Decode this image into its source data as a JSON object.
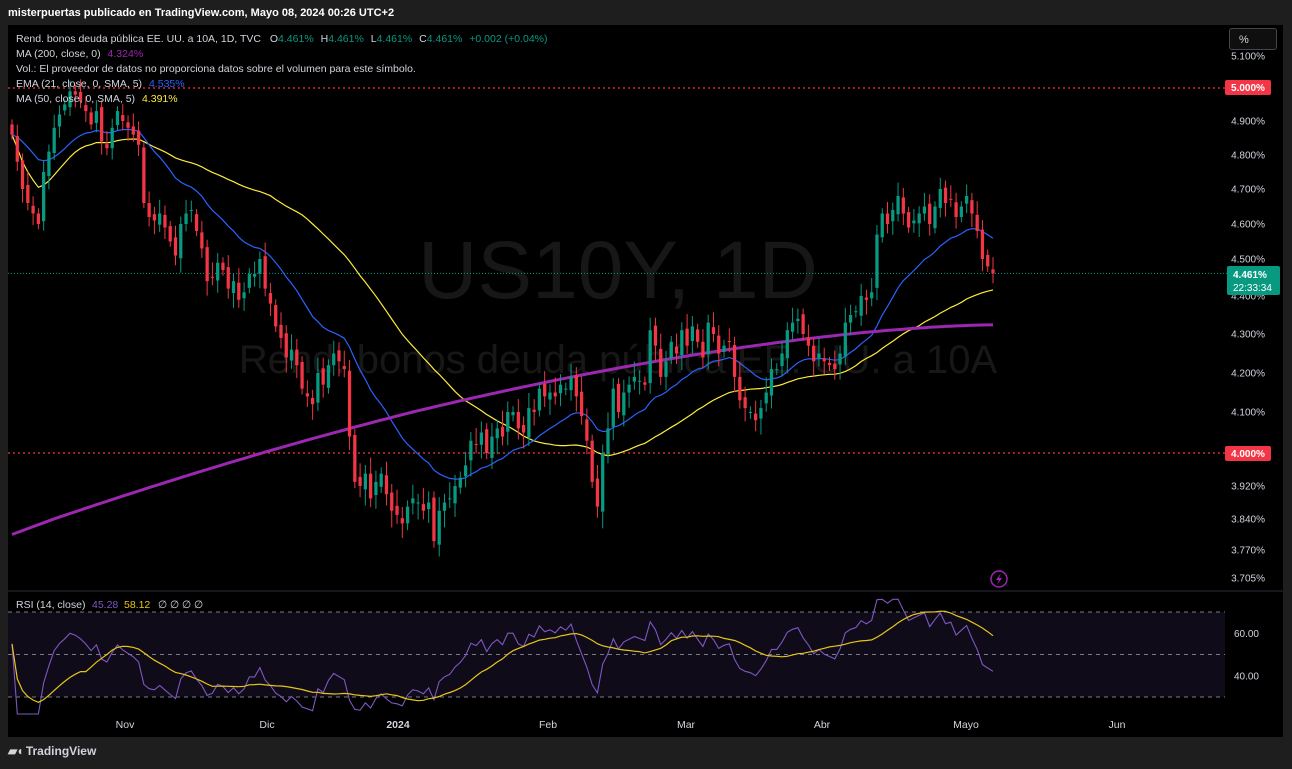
{
  "header": {
    "published_by": "misterpuertas publicado en TradingView.com, Mayo 08, 2024 00:26 UTC+2"
  },
  "legend": {
    "symbol_line": "Rend. bonos deuda pública EE. UU. a 10A, 1D, TVC",
    "ohlc": {
      "O": "4.461%",
      "H": "4.461%",
      "L": "4.461%",
      "C": "4.461%",
      "change": "+0.002 (+0.04%)"
    },
    "ma200": {
      "label": "MA (200, close, 0)",
      "value": "4.324%"
    },
    "vol": "Vol.: El proveedor de datos no proporciona datos sobre el volumen para este símbolo.",
    "ema21": {
      "label": "EMA (21, close, 0, SMA, 5)",
      "value": "4.535%"
    },
    "ma50": {
      "label": "MA (50, close, 0, SMA, 5)",
      "value": "4.391%"
    }
  },
  "watermark": {
    "symbol": "US10Y, 1D",
    "name": "Rend. bonos deuda pública EE. UU. a 10A"
  },
  "scale_button": "%",
  "price_badge": {
    "price": "4.461%",
    "countdown": "22:33:34"
  },
  "level_badges": [
    "5.000%",
    "4.000%"
  ],
  "rsi_legend": {
    "label": "RSI (14, close)",
    "rsi": "45.28",
    "ma": "58.12",
    "extra": [
      "∅",
      "∅",
      "∅",
      "∅"
    ]
  },
  "footer_brand": "TradingView",
  "colors": {
    "up": "#089981",
    "down": "#f23645",
    "ema": "#2962ff",
    "ma50": "#ffeb3b",
    "ma200": "#9c27b0",
    "rsi": "#7e57c2",
    "rsi_ma": "#e6c619",
    "level": "#f23645"
  },
  "icons": [
    "lightning-icon",
    "tradingview-logo-icon"
  ],
  "chart_data": {
    "type": "candlestick",
    "y_axis": {
      "ticks": [
        "5.100%",
        "4.900%",
        "4.800%",
        "4.700%",
        "4.600%",
        "4.500%",
        "4.400%",
        "4.300%",
        "4.200%",
        "4.100%",
        "3.920%",
        "3.840%",
        "3.770%",
        "3.705%"
      ],
      "range": [
        3.705,
        5.1
      ]
    },
    "x_axis": {
      "ticks": [
        "Nov",
        "Dic",
        "2024",
        "Feb",
        "Mar",
        "Abr",
        "Mayo",
        "Jun"
      ]
    },
    "horizontal_levels": [
      5.0,
      4.0
    ],
    "last_price": 4.461,
    "close_series": [
      4.86,
      4.78,
      4.7,
      4.66,
      4.63,
      4.6,
      4.75,
      4.81,
      4.88,
      4.92,
      4.95,
      4.99,
      4.98,
      4.96,
      4.93,
      4.89,
      4.93,
      4.84,
      4.82,
      4.88,
      4.93,
      4.9,
      4.88,
      4.86,
      4.83,
      4.66,
      4.62,
      4.61,
      4.63,
      4.59,
      4.55,
      4.51,
      4.6,
      4.63,
      4.64,
      4.58,
      4.53,
      4.44,
      4.45,
      4.49,
      4.47,
      4.42,
      4.44,
      4.39,
      4.41,
      4.46,
      4.46,
      4.5,
      4.42,
      4.38,
      4.32,
      4.29,
      4.24,
      4.26,
      4.22,
      4.16,
      4.14,
      4.12,
      4.2,
      4.17,
      4.22,
      4.25,
      4.23,
      4.21,
      4.04,
      3.93,
      3.92,
      3.95,
      3.89,
      3.93,
      3.95,
      3.9,
      3.86,
      3.85,
      3.83,
      3.87,
      3.89,
      3.88,
      3.86,
      3.88,
      3.79,
      3.86,
      3.88,
      3.89,
      3.92,
      3.94,
      3.97,
      4.03,
      4.02,
      4.05,
      4.0,
      4.04,
      4.06,
      4.04,
      4.1,
      4.1,
      4.06,
      4.05,
      4.11,
      4.1,
      4.16,
      4.14,
      4.15,
      4.14,
      4.17,
      4.16,
      4.19,
      4.14,
      4.09,
      4.03,
      3.93,
      3.87,
      4.0,
      4.06,
      4.16,
      4.1,
      4.15,
      4.17,
      4.19,
      4.18,
      4.17,
      4.31,
      4.27,
      4.19,
      4.23,
      4.28,
      4.25,
      4.31,
      4.27,
      4.32,
      4.28,
      4.24,
      4.33,
      4.3,
      4.25,
      4.27,
      4.28,
      4.19,
      4.13,
      4.11,
      4.1,
      4.08,
      4.11,
      4.15,
      4.21,
      4.21,
      4.25,
      4.31,
      4.33,
      4.34,
      4.3,
      4.27,
      4.23,
      4.25,
      4.23,
      4.22,
      4.21,
      4.25,
      4.33,
      4.35,
      4.36,
      4.4,
      4.39,
      4.41,
      4.57,
      4.63,
      4.6,
      4.64,
      4.68,
      4.63,
      4.59,
      4.61,
      4.63,
      4.65,
      4.6,
      4.65,
      4.7,
      4.66,
      4.67,
      4.62,
      4.65,
      4.68,
      4.63,
      4.58,
      4.5,
      4.48,
      4.461
    ],
    "rsi": {
      "range": [
        20,
        80
      ],
      "levels": [
        70,
        50,
        30
      ],
      "ticks": [
        "60.00",
        "40.00"
      ],
      "last": 45.28,
      "ma_last": 58.12
    }
  }
}
